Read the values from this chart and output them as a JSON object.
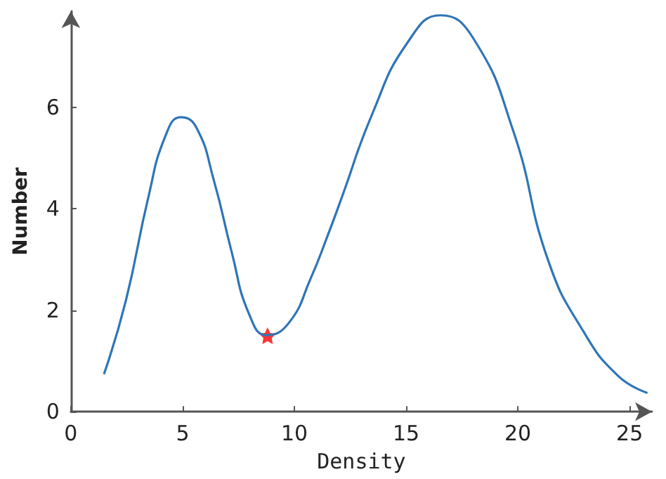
{
  "chart_data": {
    "type": "line",
    "xlabel": "Density",
    "ylabel": "Number",
    "xlim": [
      0,
      26
    ],
    "ylim": [
      0,
      7.9
    ],
    "xticks": [
      0,
      5,
      10,
      15,
      20,
      25
    ],
    "yticks": [
      0,
      2,
      4,
      6
    ],
    "grid": false,
    "series": [
      {
        "color": "#2e75b6",
        "marker": "none",
        "x": [
          1.48,
          2.46,
          3.45,
          4.23,
          4.92,
          5.61,
          6.4,
          7.19,
          7.97,
          8.76,
          9.75,
          10.73,
          11.52,
          12.1,
          13.49,
          15.06,
          16.54,
          18.0,
          19.8,
          21.36,
          22.94,
          24.5,
          25.8
        ],
        "values": [
          0.74,
          2.19,
          4.2,
          5.44,
          5.81,
          5.61,
          4.56,
          3.16,
          1.93,
          1.51,
          1.75,
          2.63,
          3.51,
          4.2,
          5.88,
          7.28,
          7.82,
          7.37,
          5.53,
          2.98,
          1.58,
          0.7,
          0.37
        ]
      },
      {
        "type": "scatter",
        "color": "#ff0000",
        "marker": "star",
        "x": [
          8.8
        ],
        "values": [
          1.5
        ]
      }
    ]
  }
}
